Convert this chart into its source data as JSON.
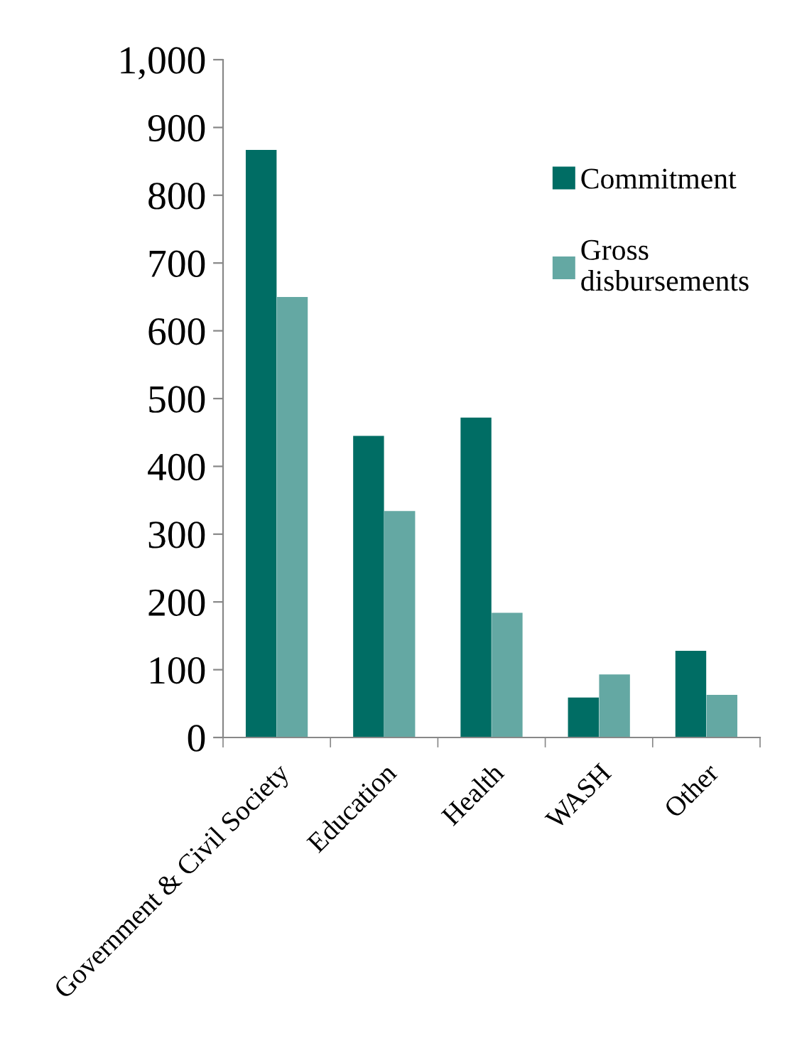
{
  "chart_data": {
    "type": "bar",
    "categories": [
      "Government & Civil Society",
      "Education",
      "Health",
      "WASH",
      "Other"
    ],
    "series": [
      {
        "name": "Commitment",
        "color": "#006d64",
        "values": [
          867,
          445,
          472,
          59,
          128
        ]
      },
      {
        "name": "Gross\ndisbursements",
        "color": "#64a8a3",
        "values": [
          650,
          334,
          184,
          93,
          63
        ]
      }
    ],
    "ylim": [
      0,
      1000
    ],
    "yticks": [
      0,
      100,
      200,
      300,
      400,
      500,
      600,
      700,
      800,
      900,
      {
        "value": 1000,
        "label": "1,000"
      }
    ],
    "grid": false,
    "legend": "top right"
  }
}
